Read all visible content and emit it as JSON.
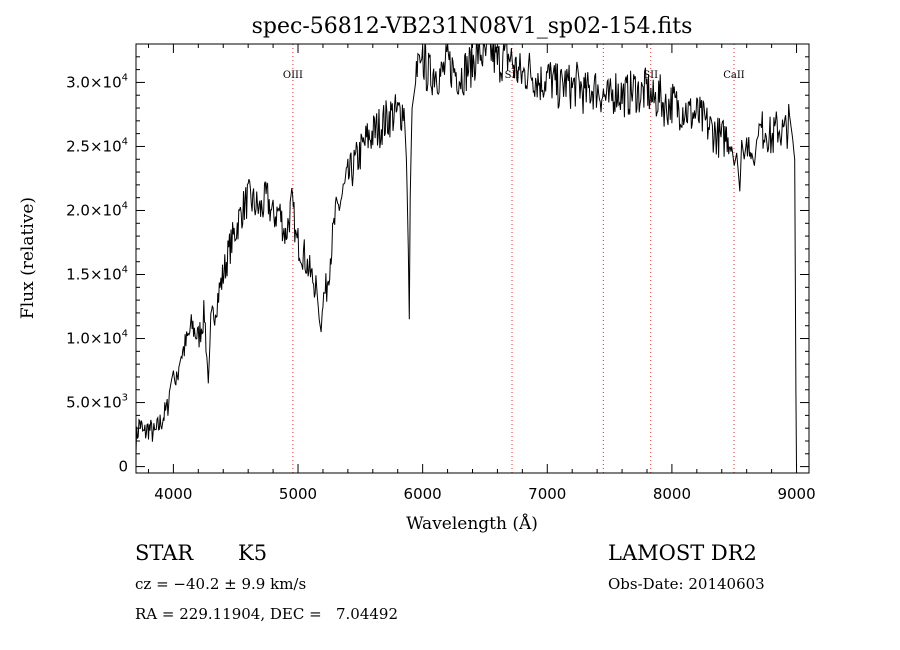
{
  "chart_data": {
    "type": "line",
    "title": "spec-56812-VB231N08V1_sp02-154.fits",
    "xlabel": "Wavelength (Å)",
    "ylabel": "Flux (relative)",
    "xlim": [
      3700,
      9100
    ],
    "ylim": [
      -500,
      33000
    ],
    "x_ticks": [
      4000,
      5000,
      6000,
      7000,
      8000,
      9000
    ],
    "y_ticks": [
      {
        "value": 0,
        "mant": "0",
        "exp": ""
      },
      {
        "value": 5000,
        "mant": "5.0×10",
        "exp": "3"
      },
      {
        "value": 10000,
        "mant": "1.0×10",
        "exp": "4"
      },
      {
        "value": 15000,
        "mant": "1.5×10",
        "exp": "4"
      },
      {
        "value": 20000,
        "mant": "2.0×10",
        "exp": "4"
      },
      {
        "value": 25000,
        "mant": "2.5×10",
        "exp": "4"
      },
      {
        "value": 30000,
        "mant": "3.0×10",
        "exp": "4"
      }
    ],
    "grid": false,
    "line_color": "#000000",
    "marker_color": "#cc3333",
    "spectral_lines": [
      {
        "x": 4959,
        "label": "OIII"
      },
      {
        "x": 6717,
        "label": "SII"
      },
      {
        "x": 7450,
        "label": ""
      },
      {
        "x": 7830,
        "label": "SII"
      },
      {
        "x": 8498,
        "label": "CaII"
      }
    ],
    "series": [
      {
        "values_x": [
          3700,
          3730,
          3760,
          3800,
          3850,
          3900,
          3950,
          3980,
          4000,
          4020,
          4050,
          4100,
          4150,
          4200,
          4250,
          4280,
          4300,
          4350,
          4400,
          4450,
          4500,
          4550,
          4600,
          4650,
          4700,
          4750,
          4800,
          4850,
          4900,
          4950,
          4980,
          5000,
          5050,
          5100,
          5150,
          5170,
          5185,
          5200,
          5230,
          5260,
          5300,
          5350,
          5400,
          5450,
          5500,
          5550,
          5600,
          5650,
          5700,
          5750,
          5800,
          5850,
          5870,
          5885,
          5893,
          5900,
          5915,
          5930,
          5950,
          5980,
          6000,
          6030,
          6060,
          6100,
          6150,
          6200,
          6250,
          6300,
          6350,
          6400,
          6450,
          6500,
          6550,
          6600,
          6650,
          6700,
          6750,
          6800,
          6850,
          6900,
          6950,
          7000,
          7050,
          7100,
          7150,
          7200,
          7250,
          7300,
          7350,
          7400,
          7450,
          7500,
          7550,
          7600,
          7650,
          7700,
          7750,
          7800,
          7850,
          7900,
          7950,
          8000,
          8050,
          8100,
          8150,
          8200,
          8250,
          8300,
          8350,
          8400,
          8450,
          8480,
          8500,
          8520,
          8545,
          8560,
          8580,
          8600,
          8640,
          8662,
          8680,
          8700,
          8750,
          8800,
          8850,
          8900,
          8950,
          8970,
          8985,
          8995,
          9000
        ],
        "values_y": [
          2000,
          3500,
          2500,
          3000,
          2500,
          3500,
          4500,
          6500,
          7500,
          6000,
          8500,
          9500,
          11000,
          10000,
          12000,
          6500,
          11000,
          13000,
          15000,
          17000,
          18500,
          20000,
          21000,
          20500,
          20000,
          21000,
          19500,
          20000,
          18000,
          20500,
          18500,
          17500,
          16500,
          15000,
          14000,
          11500,
          10500,
          13000,
          14000,
          16500,
          19500,
          21000,
          22500,
          23500,
          24500,
          25500,
          26000,
          26500,
          27000,
          27500,
          27500,
          28000,
          24000,
          17000,
          11500,
          21000,
          28000,
          29000,
          30500,
          31500,
          32000,
          31000,
          30500,
          31000,
          30500,
          31500,
          31000,
          30500,
          31000,
          31500,
          32500,
          32000,
          32500,
          31500,
          32000,
          32000,
          31000,
          30500,
          31000,
          30500,
          30000,
          30500,
          30000,
          29500,
          30000,
          29500,
          30000,
          29000,
          29500,
          29500,
          29000,
          28500,
          29500,
          29000,
          29000,
          29500,
          29000,
          29500,
          28500,
          29000,
          28000,
          28500,
          28000,
          28000,
          27500,
          27500,
          27000,
          26500,
          26000,
          25500,
          26000,
          25000,
          23500,
          24500,
          21500,
          25500,
          24000,
          25500,
          24500,
          23500,
          25500,
          26000,
          26500,
          25500,
          26500,
          26000,
          27000,
          25500,
          24000,
          6000,
          0
        ]
      }
    ]
  },
  "info": {
    "object_class": "STAR",
    "subclass": "K5",
    "survey": "LAMOST DR2",
    "cz": "cz = −40.2 ± 9.9 km/s",
    "obs_date": "Obs-Date: 20140603",
    "coords": "RA = 229.11904, DEC =   7.04492"
  }
}
